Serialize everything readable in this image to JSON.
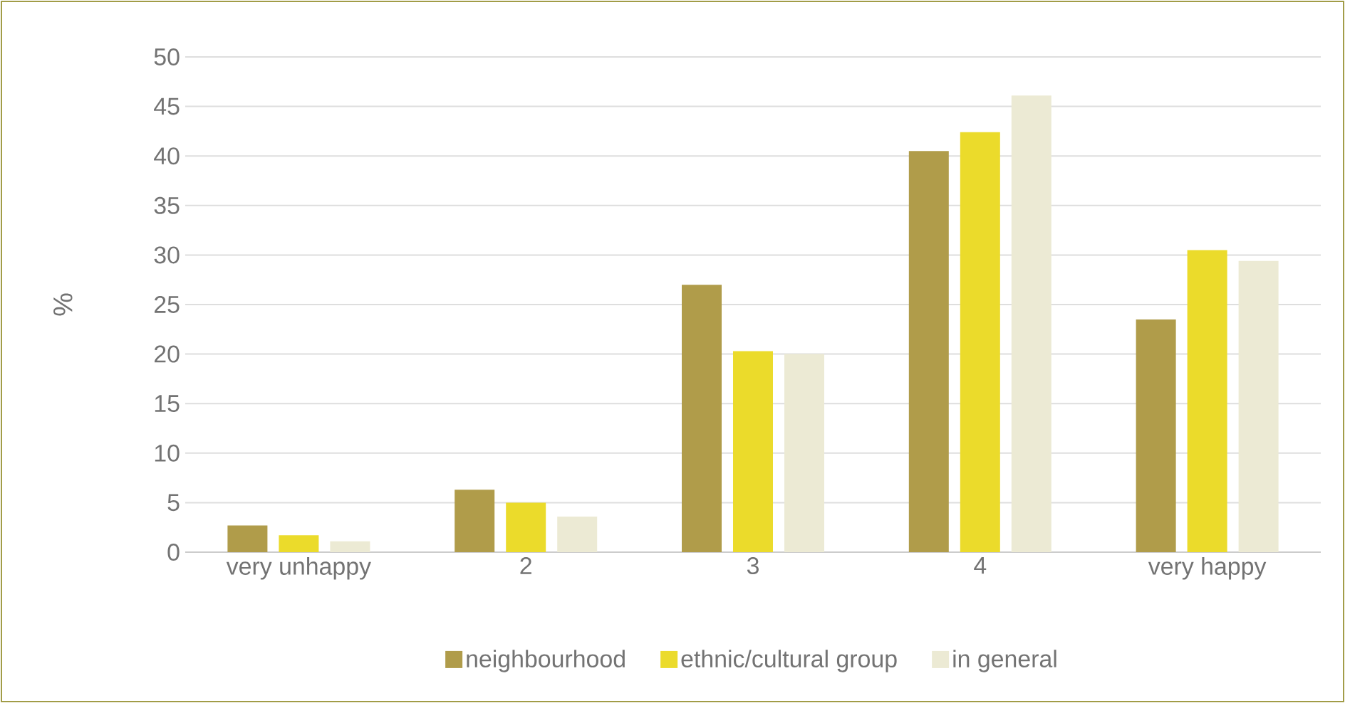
{
  "chart_data": {
    "type": "bar",
    "ylabel": "%",
    "categories": [
      "very unhappy",
      "2",
      "3",
      "4",
      "very happy"
    ],
    "series": [
      {
        "name": "neighbourhood",
        "color": "#b09c4a",
        "values": [
          2.7,
          6.3,
          27.0,
          40.5,
          23.5
        ]
      },
      {
        "name": "ethnic/cultural group",
        "color": "#ebdb2b",
        "values": [
          1.7,
          5.0,
          20.3,
          42.4,
          30.5
        ]
      },
      {
        "name": "in general",
        "color": "#ecead4",
        "values": [
          1.1,
          3.6,
          20.0,
          46.1,
          29.4
        ]
      }
    ],
    "ylim": [
      0,
      50
    ],
    "yticks": [
      0,
      5,
      10,
      15,
      20,
      25,
      30,
      35,
      40,
      45,
      50
    ],
    "grid": "y",
    "legend": "bottom"
  }
}
